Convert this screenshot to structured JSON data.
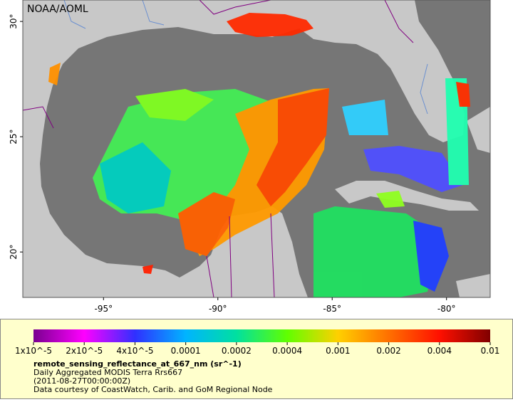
{
  "map": {
    "credit": "NOAA/AOML",
    "lon_range": [
      -98.53,
      -78.09
    ],
    "lat_range": [
      18.03,
      30.93
    ],
    "lon_ticks": [
      {
        "value": -95,
        "label": "-95°"
      },
      {
        "value": -90,
        "label": "-90°"
      },
      {
        "value": -85,
        "label": "-85°"
      },
      {
        "value": -80,
        "label": "-80°"
      }
    ],
    "lat_ticks": [
      {
        "value": 20,
        "label": "20°"
      },
      {
        "value": 25,
        "label": "25°"
      },
      {
        "value": 30,
        "label": "30°"
      }
    ]
  },
  "colorbar": {
    "colors": [
      "#7a0090",
      "#ff00ff",
      "#3030ff",
      "#00b4ff",
      "#00e0a0",
      "#60ff00",
      "#ffd000",
      "#ff7000",
      "#ff1000",
      "#800000"
    ],
    "tick_labels": [
      "1x10^-5",
      "2x10^-5",
      "4x10^-5",
      "0.0001",
      "0.0002",
      "0.0004",
      "0.001",
      "0.002",
      "0.004",
      "0.01"
    ]
  },
  "caption": {
    "variable": "remote_sensing_reflectance_at_667_nm (sr^-1)",
    "product": "Daily Aggregated MODIS Terra Rrs667",
    "time": "(2011-08-27T00:00:00Z)",
    "credit": "Data courtesy of CoastWatch, Carib. and GoM Regional Node"
  }
}
